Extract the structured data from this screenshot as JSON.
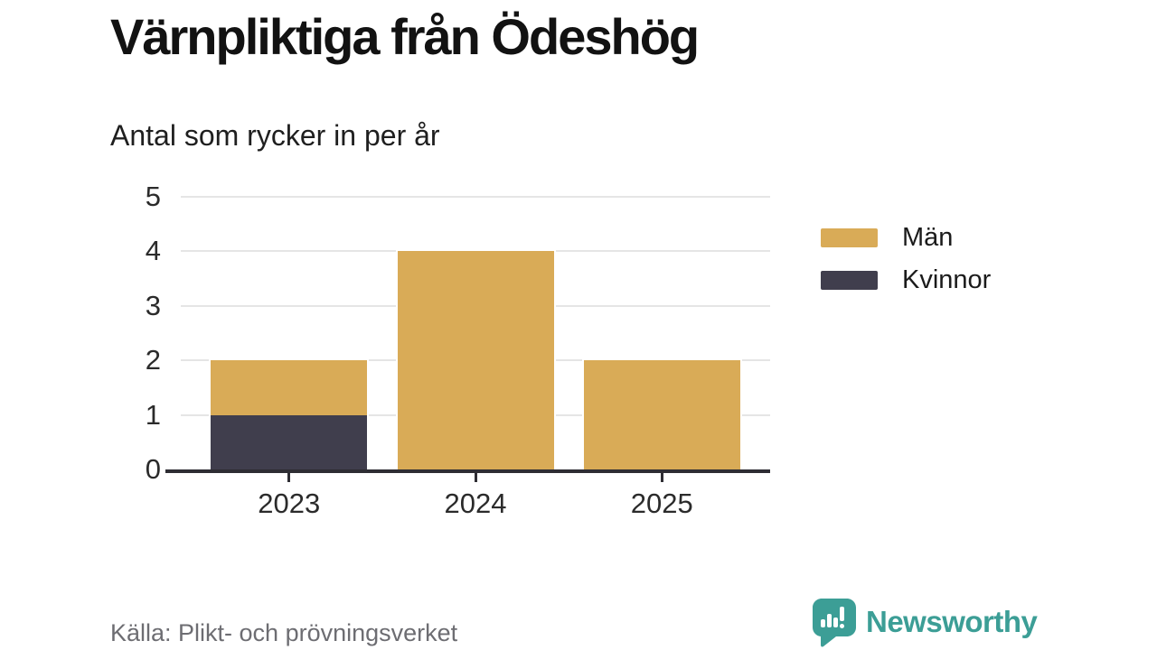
{
  "header": {
    "title": "Värnpliktiga från Ödeshög",
    "subtitle": "Antal som rycker in per år"
  },
  "chart_data": {
    "type": "bar",
    "stacked": true,
    "title": "Värnpliktiga från Ödeshög",
    "subtitle": "Antal som rycker in per år",
    "categories": [
      "2023",
      "2024",
      "2025"
    ],
    "series": [
      {
        "name": "Män",
        "color": "#d9ab57",
        "values": [
          1,
          4,
          2
        ]
      },
      {
        "name": "Kvinnor",
        "color": "#403e4d",
        "values": [
          1,
          0,
          0
        ]
      }
    ],
    "stack_bottom_first": [
      "Kvinnor",
      "Män"
    ],
    "totals": [
      2,
      4,
      2
    ],
    "xlabel": "",
    "ylabel": "",
    "ylim": [
      0,
      5
    ],
    "yticks": [
      0,
      1,
      2,
      3,
      4,
      5
    ],
    "grid": "horizontal",
    "legend_position": "right"
  },
  "colors": {
    "grid": "#e5e5e5",
    "axis": "#2e2d33",
    "tick_text": "#2b2b2b",
    "brand_teal": "#3c9e96"
  },
  "footer": {
    "source": "Källa: Plikt- och prövningsverket",
    "brand": "Newsworthy",
    "brand_icon": "speech-bubble-bar-chart-icon"
  }
}
